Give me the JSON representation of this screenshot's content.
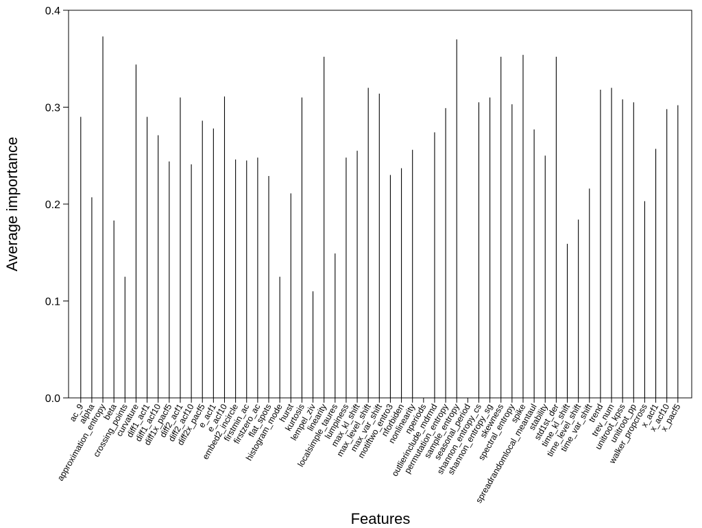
{
  "chart_data": {
    "type": "bar",
    "xlabel": "Features",
    "ylabel": "Average importance",
    "ylim": [
      0,
      0.4
    ],
    "yticks": [
      "0.0",
      "0.1",
      "0.2",
      "0.3",
      "0.4"
    ],
    "grid": false,
    "categories": [
      "ac_9",
      "alpha",
      "approximation_entropy",
      "beta",
      "crossing_points",
      "curvature",
      "diff1_acf1",
      "diff1_acf10",
      "diff1x_pacf5",
      "diff2_acf1",
      "diff2_acf10",
      "diff2x_pacf5",
      "e_acf1",
      "e_acf10",
      "embed2_incircle",
      "firstmin_ac",
      "firstzero_ac",
      "flat_spots",
      "histogram_mode",
      "hurst",
      "kurtosis",
      "lempel_ziv",
      "linearity",
      "localsimple_taures",
      "lumpiness",
      "max_kl_shift",
      "max_level_shift",
      "max_var_shift",
      "motiftwo_entro3",
      "nforbiden",
      "nonlinearity",
      "nperiods",
      "outlierinclude_mdrmd",
      "permutation_entropy",
      "sample_entropy",
      "seasonal_period",
      "shannon_entropy_cs",
      "shannon_entropy_sg",
      "skewness",
      "spectral_entropy",
      "spike",
      "spreadrandomlocal_meantaul",
      "stability",
      "std1st_der",
      "time_kl_shift",
      "time_level_shift",
      "time_var_shift",
      "trend",
      "trev_num",
      "unitroot_kpss",
      "unitroot_pp",
      "walker_propcross",
      "x_acf1",
      "x_acf10",
      "x_pacf5"
    ],
    "values": [
      0.29,
      0.207,
      0.373,
      0.183,
      0.125,
      0.344,
      0.29,
      0.271,
      0.244,
      0.31,
      0.241,
      0.286,
      0.278,
      0.311,
      0.246,
      0.245,
      0.248,
      0.229,
      0.125,
      0.211,
      0.31,
      0.11,
      0.352,
      0.149,
      0.248,
      0.255,
      0.32,
      0.314,
      0.23,
      0.237,
      0.256,
      0.0,
      0.274,
      0.299,
      0.37,
      0.0,
      0.305,
      0.31,
      0.352,
      0.303,
      0.354,
      0.277,
      0.25,
      0.352,
      0.159,
      0.184,
      0.216,
      0.318,
      0.32,
      0.308,
      0.305,
      0.203,
      0.257,
      0.298,
      0.302
    ]
  }
}
